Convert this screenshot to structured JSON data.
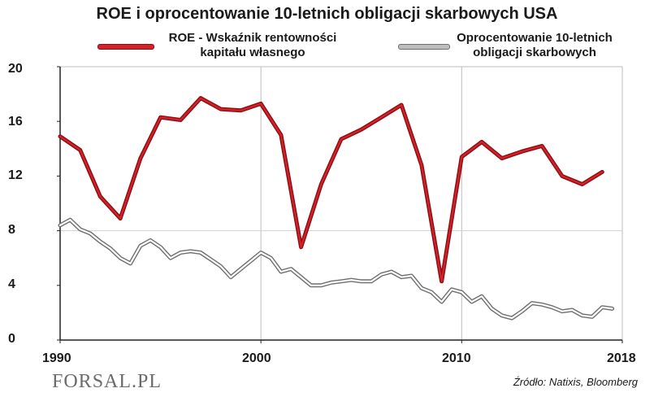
{
  "chart_data": {
    "type": "line",
    "title": "ROE i oprocentowanie 10-letnich obligacji skarbowych USA",
    "xlabel": "",
    "ylabel": "",
    "xlim": [
      1990,
      2018
    ],
    "ylim": [
      0,
      20
    ],
    "y_ticks": [
      "0",
      "4",
      "8",
      "12",
      "16",
      "20"
    ],
    "x_ticks": [
      "1990",
      "2000",
      "2010",
      "2018"
    ],
    "grid": "vertical lines at 2000 and 2010, horizontal line at 8",
    "legend": "top",
    "series": [
      {
        "name": "ROE - Wskaźnik rentowności kapitału własnego",
        "color": "#d0232a",
        "x": [
          1990,
          1991,
          1992,
          1993,
          1994,
          1995,
          1996,
          1997,
          1998,
          1999,
          2000,
          2001,
          2002,
          2003,
          2004,
          2005,
          2006,
          2007,
          2008,
          2009,
          2010,
          2011,
          2012,
          2013,
          2014,
          2015,
          2016,
          2017
        ],
        "values": [
          14.9,
          13.9,
          10.5,
          8.9,
          13.3,
          16.3,
          16.1,
          17.7,
          16.9,
          16.8,
          17.3,
          15.0,
          6.8,
          11.4,
          14.7,
          15.4,
          16.3,
          17.2,
          12.8,
          4.3,
          13.4,
          14.5,
          13.3,
          13.8,
          14.2,
          12.0,
          11.4,
          12.3
        ]
      },
      {
        "name": "Oprocentowanie 10-letnich obligacji skarbowych",
        "color": "#bdbdbd",
        "x": [
          1990,
          1990.5,
          1991,
          1991.5,
          1992,
          1992.5,
          1993,
          1993.5,
          1994,
          1994.5,
          1995,
          1995.5,
          1996,
          1996.5,
          1997,
          1997.5,
          1998,
          1998.5,
          1999,
          1999.5,
          2000,
          2000.5,
          2001,
          2001.5,
          2002,
          2002.5,
          2003,
          2003.5,
          2004,
          2004.5,
          2005,
          2005.5,
          2006,
          2006.5,
          2007,
          2007.5,
          2008,
          2008.5,
          2009,
          2009.5,
          2010,
          2010.5,
          2011,
          2011.5,
          2012,
          2012.5,
          2013,
          2013.5,
          2014,
          2014.5,
          2015,
          2015.5,
          2016,
          2016.5,
          2017,
          2017.5
        ],
        "values": [
          8.4,
          8.8,
          8.1,
          7.8,
          7.2,
          6.7,
          6.0,
          5.6,
          6.9,
          7.3,
          6.8,
          6.0,
          6.4,
          6.5,
          6.4,
          5.9,
          5.4,
          4.6,
          5.2,
          5.8,
          6.4,
          6.0,
          5.0,
          5.2,
          4.6,
          4.0,
          4.0,
          4.2,
          4.3,
          4.4,
          4.3,
          4.3,
          4.8,
          5.0,
          4.6,
          4.7,
          3.8,
          3.5,
          2.8,
          3.7,
          3.5,
          2.8,
          3.2,
          2.3,
          1.8,
          1.6,
          2.1,
          2.7,
          2.6,
          2.4,
          2.1,
          2.2,
          1.8,
          1.7,
          2.4,
          2.3
        ]
      }
    ]
  },
  "source": "Źródło: Natixis, Bloomberg",
  "logo_text": "FORSAL.PL"
}
